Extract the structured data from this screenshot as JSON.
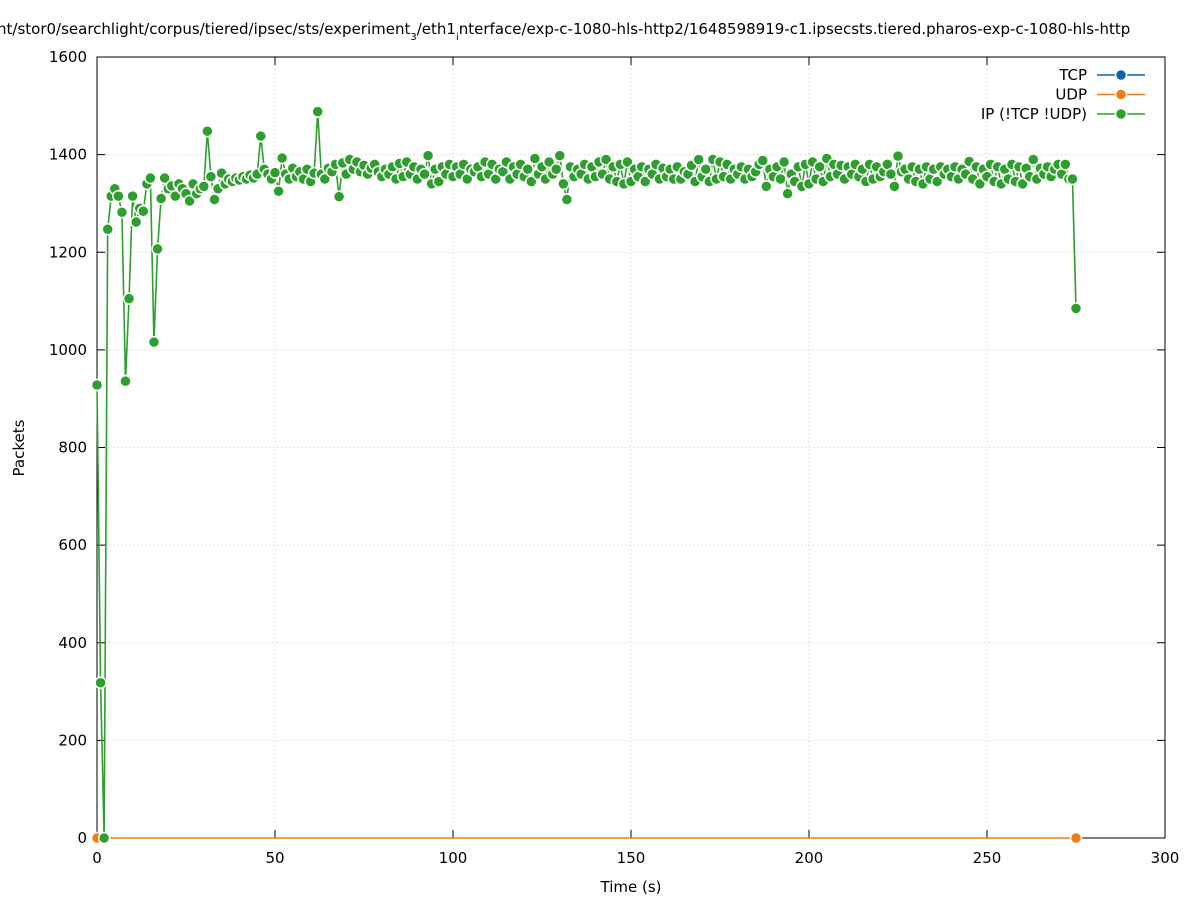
{
  "chart_data": {
    "type": "line",
    "title": [
      "nt/stor0/searchlight/corpus/tiered/ipsec/sts/experiment",
      "3",
      "/eth1",
      "i",
      "nterface/exp-c-1080-hls-http2/1648598919-c1.ipsecsts.tiered.pharos-exp-c-1080-hls-http"
    ],
    "x_label": "Time (s)",
    "y_label": "Packets",
    "xlim": [
      0,
      300
    ],
    "xticks": [
      0,
      50,
      100,
      150,
      200,
      250,
      300
    ],
    "ylim": [
      0,
      1600
    ],
    "yticks": [
      0,
      200,
      400,
      600,
      800,
      1000,
      1200,
      1400,
      1600
    ],
    "grid": true,
    "legend": "top-right",
    "series": [
      {
        "name": "TCP",
        "color": "#0b62b0",
        "x": [],
        "values": []
      },
      {
        "name": "UDP",
        "color": "#f07c13",
        "x": [
          0,
          275
        ],
        "values": [
          0,
          0
        ]
      },
      {
        "name": "IP (!TCP  !UDP)",
        "color": "#2e9e2e",
        "x": [
          0,
          1,
          2,
          3,
          4,
          5,
          6,
          7,
          8,
          9,
          10,
          11,
          12,
          13,
          14,
          15,
          16,
          17,
          18,
          19,
          20,
          21,
          22,
          23,
          24,
          25,
          26,
          27,
          28,
          29,
          30,
          31,
          32,
          33,
          34,
          35,
          36,
          37,
          38,
          39,
          40,
          41,
          42,
          43,
          44,
          45,
          46,
          47,
          48,
          49,
          50,
          51,
          52,
          53,
          54,
          55,
          56,
          57,
          58,
          59,
          60,
          61,
          62,
          63,
          64,
          65,
          66,
          67,
          68,
          69,
          70,
          71,
          72,
          73,
          74,
          75,
          76,
          77,
          78,
          79,
          80,
          81,
          82,
          83,
          84,
          85,
          86,
          87,
          88,
          89,
          90,
          91,
          92,
          93,
          94,
          95,
          96,
          97,
          98,
          99,
          100,
          101,
          102,
          103,
          104,
          105,
          106,
          107,
          108,
          109,
          110,
          111,
          112,
          113,
          114,
          115,
          116,
          117,
          118,
          119,
          120,
          121,
          122,
          123,
          124,
          125,
          126,
          127,
          128,
          129,
          130,
          131,
          132,
          133,
          134,
          135,
          136,
          137,
          138,
          139,
          140,
          141,
          142,
          143,
          144,
          145,
          146,
          147,
          148,
          149,
          150,
          151,
          152,
          153,
          154,
          155,
          156,
          157,
          158,
          159,
          160,
          161,
          162,
          163,
          164,
          165,
          166,
          167,
          168,
          169,
          170,
          171,
          172,
          173,
          174,
          175,
          176,
          177,
          178,
          179,
          180,
          181,
          182,
          183,
          184,
          185,
          186,
          187,
          188,
          189,
          190,
          191,
          192,
          193,
          194,
          195,
          196,
          197,
          198,
          199,
          200,
          201,
          202,
          203,
          204,
          205,
          206,
          207,
          208,
          209,
          210,
          211,
          212,
          213,
          214,
          215,
          216,
          217,
          218,
          219,
          220,
          221,
          222,
          223,
          224,
          225,
          226,
          227,
          228,
          229,
          230,
          231,
          232,
          233,
          234,
          235,
          236,
          237,
          238,
          239,
          240,
          241,
          242,
          243,
          244,
          245,
          246,
          247,
          248,
          249,
          250,
          251,
          252,
          253,
          254,
          255,
          256,
          257,
          258,
          259,
          260,
          261,
          262,
          263,
          264,
          265,
          266,
          267,
          268,
          269,
          270,
          271,
          272,
          273,
          274,
          275
        ],
        "values": [
          928,
          318,
          0,
          1247,
          1315,
          1330,
          1315,
          1282,
          936,
          1105,
          1315,
          1262,
          1290,
          1284,
          1340,
          1352,
          1016,
          1207,
          1310,
          1352,
          1330,
          1336,
          1315,
          1340,
          1330,
          1320,
          1305,
          1340,
          1320,
          1330,
          1335,
          1448,
          1355,
          1308,
          1330,
          1362,
          1340,
          1350,
          1345,
          1352,
          1348,
          1355,
          1350,
          1358,
          1352,
          1360,
          1438,
          1370,
          1360,
          1350,
          1363,
          1325,
          1393,
          1360,
          1350,
          1372,
          1355,
          1365,
          1350,
          1370,
          1345,
          1362,
          1488,
          1360,
          1350,
          1372,
          1365,
          1380,
          1314,
          1383,
          1360,
          1390,
          1370,
          1385,
          1365,
          1378,
          1360,
          1372,
          1380,
          1365,
          1355,
          1370,
          1360,
          1375,
          1350,
          1382,
          1355,
          1385,
          1360,
          1375,
          1350,
          1370,
          1360,
          1398,
          1340,
          1370,
          1345,
          1375,
          1360,
          1380,
          1355,
          1375,
          1360,
          1380,
          1350,
          1370,
          1365,
          1375,
          1355,
          1385,
          1360,
          1380,
          1350,
          1370,
          1365,
          1385,
          1350,
          1375,
          1360,
          1380,
          1355,
          1370,
          1345,
          1392,
          1360,
          1375,
          1350,
          1385,
          1360,
          1370,
          1398,
          1340,
          1308,
          1375,
          1355,
          1370,
          1360,
          1380,
          1350,
          1375,
          1355,
          1385,
          1360,
          1390,
          1350,
          1375,
          1345,
          1380,
          1340,
          1385,
          1345,
          1370,
          1355,
          1375,
          1345,
          1370,
          1360,
          1380,
          1350,
          1372,
          1355,
          1370,
          1350,
          1375,
          1350,
          1365,
          1360,
          1378,
          1345,
          1390,
          1355,
          1370,
          1345,
          1390,
          1350,
          1385,
          1355,
          1380,
          1350,
          1370,
          1360,
          1375,
          1350,
          1370,
          1355,
          1365,
          1380,
          1388,
          1335,
          1370,
          1355,
          1375,
          1350,
          1385,
          1320,
          1360,
          1345,
          1375,
          1335,
          1380,
          1340,
          1385,
          1350,
          1375,
          1345,
          1392,
          1355,
          1380,
          1360,
          1378,
          1350,
          1375,
          1360,
          1380,
          1355,
          1370,
          1345,
          1380,
          1350,
          1375,
          1355,
          1365,
          1380,
          1360,
          1335,
          1397,
          1365,
          1370,
          1350,
          1375,
          1345,
          1370,
          1340,
          1375,
          1350,
          1370,
          1345,
          1375,
          1360,
          1370,
          1355,
          1375,
          1350,
          1370,
          1360,
          1386,
          1350,
          1375,
          1340,
          1370,
          1355,
          1380,
          1345,
          1375,
          1340,
          1370,
          1350,
          1380,
          1345,
          1375,
          1340,
          1372,
          1355,
          1390,
          1350,
          1372,
          1360,
          1375,
          1355,
          1370,
          1380,
          1360,
          1380,
          1350,
          1350,
          1085
        ]
      }
    ]
  }
}
